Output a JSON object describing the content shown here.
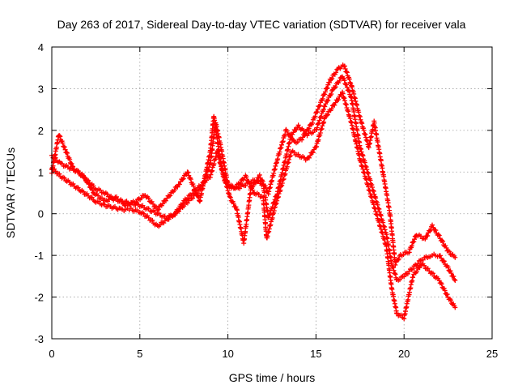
{
  "chart_data": {
    "type": "scatter",
    "title": "Day 263 of 2017, Sidereal Day-to-day VTEC variation (SDTVAR) for receiver vala",
    "xlabel": "GPS time / hours",
    "ylabel": "SDTVAR / TECUs",
    "xlim": [
      0,
      25
    ],
    "ylim": [
      -3,
      4
    ],
    "xticks": [
      "0",
      "5",
      "10",
      "15",
      "20",
      "25"
    ],
    "yticks": [
      "-3",
      "-2",
      "-1",
      "0",
      "1",
      "2",
      "3",
      "4"
    ],
    "grid": true,
    "marker": "plus",
    "color": "#ff0000",
    "series": [
      {
        "points": [
          [
            0,
            1.4
          ],
          [
            0.5,
            1.2
          ],
          [
            1,
            1.1
          ],
          [
            1.5,
            1.0
          ],
          [
            2,
            0.8
          ],
          [
            2.5,
            0.6
          ],
          [
            3,
            0.5
          ],
          [
            3.5,
            0.35
          ],
          [
            4,
            0.3
          ],
          [
            4.5,
            0.25
          ],
          [
            5,
            0.2
          ],
          [
            5.5,
            0.1
          ],
          [
            6,
            0.0
          ],
          [
            6.5,
            -0.1
          ],
          [
            7,
            0.0
          ],
          [
            7.5,
            0.2
          ],
          [
            8,
            0.4
          ],
          [
            8.5,
            0.6
          ],
          [
            9,
            1.2
          ],
          [
            9.3,
            2.2
          ],
          [
            9.6,
            1.6
          ],
          [
            10,
            0.7
          ],
          [
            10.5,
            0.6
          ],
          [
            11,
            0.7
          ],
          [
            11.5,
            0.8
          ],
          [
            12,
            0.7
          ],
          [
            12.3,
            -0.1
          ],
          [
            12.8,
            0.5
          ],
          [
            13.2,
            1.2
          ],
          [
            13.6,
            1.9
          ],
          [
            14,
            2.1
          ],
          [
            14.5,
            1.9
          ],
          [
            15,
            2.0
          ],
          [
            15.5,
            2.6
          ],
          [
            16,
            3.0
          ],
          [
            16.5,
            3.3
          ],
          [
            17,
            2.8
          ],
          [
            17.5,
            1.6
          ],
          [
            18,
            0.9
          ],
          [
            18.5,
            0.2
          ],
          [
            19,
            -0.5
          ],
          [
            19.3,
            -1.2
          ],
          [
            19.6,
            -1.6
          ],
          [
            20,
            -1.5
          ],
          [
            20.5,
            -1.3
          ],
          [
            21,
            -1.1
          ],
          [
            21.5,
            -1.0
          ],
          [
            22,
            -1.0
          ],
          [
            22.5,
            -1.3
          ],
          [
            22.9,
            -1.6
          ]
        ]
      },
      {
        "points": [
          [
            0,
            1.1
          ],
          [
            0.5,
            0.9
          ],
          [
            1,
            0.75
          ],
          [
            1.5,
            0.6
          ],
          [
            2,
            0.45
          ],
          [
            2.5,
            0.3
          ],
          [
            3,
            0.2
          ],
          [
            3.5,
            0.15
          ],
          [
            4,
            0.1
          ],
          [
            4.5,
            0.1
          ],
          [
            5,
            0.05
          ],
          [
            5.5,
            -0.1
          ],
          [
            6,
            -0.3
          ],
          [
            6.5,
            -0.15
          ],
          [
            7,
            0.0
          ],
          [
            7.5,
            0.3
          ],
          [
            8,
            0.5
          ],
          [
            8.5,
            0.7
          ],
          [
            9,
            0.9
          ],
          [
            9.4,
            1.5
          ],
          [
            9.8,
            0.8
          ],
          [
            10.2,
            0.6
          ],
          [
            10.6,
            0.7
          ],
          [
            11,
            0.9
          ],
          [
            11.5,
            0.5
          ],
          [
            12,
            0.4
          ],
          [
            12.2,
            -0.6
          ],
          [
            12.7,
            0.2
          ],
          [
            13.2,
            0.9
          ],
          [
            13.6,
            1.5
          ],
          [
            14,
            1.4
          ],
          [
            14.5,
            1.3
          ],
          [
            15,
            1.6
          ],
          [
            15.5,
            2.3
          ],
          [
            16,
            2.6
          ],
          [
            16.5,
            2.9
          ],
          [
            17,
            2.2
          ],
          [
            17.5,
            1.3
          ],
          [
            18,
            0.6
          ],
          [
            18.5,
            -0.1
          ],
          [
            19,
            -0.8
          ],
          [
            19.3,
            -1.8
          ],
          [
            19.6,
            -2.4
          ],
          [
            20,
            -2.5
          ],
          [
            20.5,
            -1.5
          ],
          [
            21,
            -1.2
          ],
          [
            21.5,
            -1.4
          ],
          [
            22,
            -1.6
          ],
          [
            22.5,
            -2.0
          ],
          [
            22.9,
            -2.25
          ]
        ]
      },
      {
        "points": [
          [
            0,
            1.0
          ],
          [
            0.4,
            1.9
          ],
          [
            0.8,
            1.5
          ],
          [
            1.2,
            1.1
          ],
          [
            1.8,
            0.9
          ],
          [
            2.4,
            0.5
          ],
          [
            3,
            0.3
          ],
          [
            3.6,
            0.4
          ],
          [
            4.2,
            0.2
          ],
          [
            4.8,
            0.3
          ],
          [
            5.3,
            0.45
          ],
          [
            6,
            0.1
          ],
          [
            6.6,
            0.4
          ],
          [
            7.2,
            0.7
          ],
          [
            7.7,
            1.0
          ],
          [
            8.4,
            0.3
          ],
          [
            9,
            1.5
          ],
          [
            9.2,
            2.35
          ],
          [
            9.6,
            1.2
          ],
          [
            10.1,
            0.4
          ],
          [
            10.5,
            0.1
          ],
          [
            10.9,
            -0.7
          ],
          [
            11.3,
            0.6
          ],
          [
            11.8,
            0.9
          ],
          [
            12.3,
            0.5
          ],
          [
            12.8,
            1.3
          ],
          [
            13.3,
            2.0
          ],
          [
            13.8,
            1.7
          ],
          [
            14.2,
            1.8
          ],
          [
            14.8,
            2.2
          ],
          [
            15.3,
            2.7
          ],
          [
            15.8,
            3.2
          ],
          [
            16.3,
            3.5
          ],
          [
            16.6,
            3.55
          ],
          [
            17,
            3.1
          ],
          [
            17.5,
            2.3
          ],
          [
            18,
            1.6
          ],
          [
            18.3,
            2.2
          ],
          [
            18.8,
            1.0
          ],
          [
            19.2,
            0.0
          ],
          [
            19.5,
            -1.2
          ],
          [
            19.8,
            -1.0
          ],
          [
            20.3,
            -0.9
          ],
          [
            20.7,
            -0.5
          ],
          [
            21.2,
            -0.6
          ],
          [
            21.6,
            -0.3
          ],
          [
            22,
            -0.55
          ],
          [
            22.5,
            -0.9
          ],
          [
            22.9,
            -1.05
          ]
        ]
      }
    ]
  }
}
